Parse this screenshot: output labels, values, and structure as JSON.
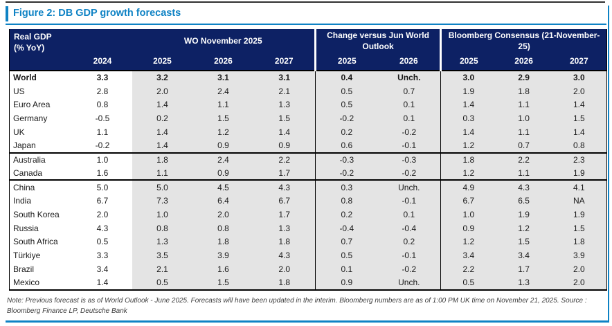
{
  "colors": {
    "accent_blue": "#0e82c4",
    "header_navy": "#0d2164",
    "band_gray": "#e4e4e4",
    "top_rule": "#2f2f2f"
  },
  "figure": {
    "title": "Figure 2: DB GDP growth forecasts",
    "note": "Note: Previous forecast is as of World Outlook - June 2025. Forecasts will have been updated in the interim. Bloomberg numbers are as of 1:00 PM UK time on November 21, 2025. Source : Bloomberg Finance LP, Deutsche Bank"
  },
  "table": {
    "corner_label": "Real GDP\n(% YoY)",
    "base_year": "2024",
    "sections": [
      {
        "label": "WO November 2025",
        "years": [
          "2025",
          "2026",
          "2027"
        ]
      },
      {
        "label": "Change versus Jun World Outlook",
        "years": [
          "2025",
          "2026"
        ]
      },
      {
        "label": "Bloomberg Consensus (21-November-25)",
        "years": [
          "2025",
          "2026",
          "2027"
        ]
      }
    ],
    "rows": [
      {
        "name": "World",
        "bold": true,
        "group_end": false,
        "values": [
          "3.3",
          "3.2",
          "3.1",
          "3.1",
          "0.4",
          "Unch.",
          "3.0",
          "2.9",
          "3.0"
        ]
      },
      {
        "name": "US",
        "bold": false,
        "group_end": false,
        "values": [
          "2.8",
          "2.0",
          "2.4",
          "2.1",
          "0.5",
          "0.7",
          "1.9",
          "1.8",
          "2.0"
        ]
      },
      {
        "name": "Euro Area",
        "bold": false,
        "group_end": false,
        "values": [
          "0.8",
          "1.4",
          "1.1",
          "1.3",
          "0.5",
          "0.1",
          "1.4",
          "1.1",
          "1.4"
        ]
      },
      {
        "name": "Germany",
        "bold": false,
        "group_end": false,
        "values": [
          "-0.5",
          "0.2",
          "1.5",
          "1.5",
          "-0.2",
          "0.1",
          "0.3",
          "1.0",
          "1.5"
        ]
      },
      {
        "name": "UK",
        "bold": false,
        "group_end": false,
        "values": [
          "1.1",
          "1.4",
          "1.2",
          "1.4",
          "0.2",
          "-0.2",
          "1.4",
          "1.1",
          "1.4"
        ]
      },
      {
        "name": "Japan",
        "bold": false,
        "group_end": true,
        "values": [
          "-0.2",
          "1.4",
          "0.9",
          "0.9",
          "0.6",
          "-0.1",
          "1.2",
          "0.7",
          "0.8"
        ]
      },
      {
        "name": "Australia",
        "bold": false,
        "group_end": false,
        "values": [
          "1.0",
          "1.8",
          "2.4",
          "2.2",
          "-0.3",
          "-0.3",
          "1.8",
          "2.2",
          "2.3"
        ]
      },
      {
        "name": "Canada",
        "bold": false,
        "group_end": true,
        "values": [
          "1.6",
          "1.1",
          "0.9",
          "1.7",
          "-0.2",
          "-0.2",
          "1.2",
          "1.1",
          "1.9"
        ]
      },
      {
        "name": "China",
        "bold": false,
        "group_end": false,
        "values": [
          "5.0",
          "5.0",
          "4.5",
          "4.3",
          "0.3",
          "Unch.",
          "4.9",
          "4.3",
          "4.1"
        ]
      },
      {
        "name": "India",
        "bold": false,
        "group_end": false,
        "values": [
          "6.7",
          "7.3",
          "6.4",
          "6.7",
          "0.8",
          "-0.1",
          "6.7",
          "6.5",
          "NA"
        ]
      },
      {
        "name": "South Korea",
        "bold": false,
        "group_end": false,
        "values": [
          "2.0",
          "1.0",
          "2.0",
          "1.7",
          "0.2",
          "0.1",
          "1.0",
          "1.9",
          "1.9"
        ]
      },
      {
        "name": "Russia",
        "bold": false,
        "group_end": false,
        "values": [
          "4.3",
          "0.8",
          "0.8",
          "1.3",
          "-0.4",
          "-0.4",
          "0.9",
          "1.2",
          "1.5"
        ]
      },
      {
        "name": "South Africa",
        "bold": false,
        "group_end": false,
        "values": [
          "0.5",
          "1.3",
          "1.8",
          "1.8",
          "0.7",
          "0.2",
          "1.2",
          "1.5",
          "1.8"
        ]
      },
      {
        "name": "Türkiye",
        "bold": false,
        "group_end": false,
        "values": [
          "3.3",
          "3.5",
          "3.9",
          "4.3",
          "0.5",
          "-0.1",
          "3.4",
          "3.4",
          "3.9"
        ]
      },
      {
        "name": "Brazil",
        "bold": false,
        "group_end": false,
        "values": [
          "3.4",
          "2.1",
          "1.6",
          "2.0",
          "0.1",
          "-0.2",
          "2.2",
          "1.7",
          "2.0"
        ]
      },
      {
        "name": "Mexico",
        "bold": false,
        "group_end": false,
        "values": [
          "1.4",
          "0.5",
          "1.5",
          "1.8",
          "0.9",
          "Unch.",
          "0.5",
          "1.3",
          "2.0"
        ]
      }
    ]
  }
}
